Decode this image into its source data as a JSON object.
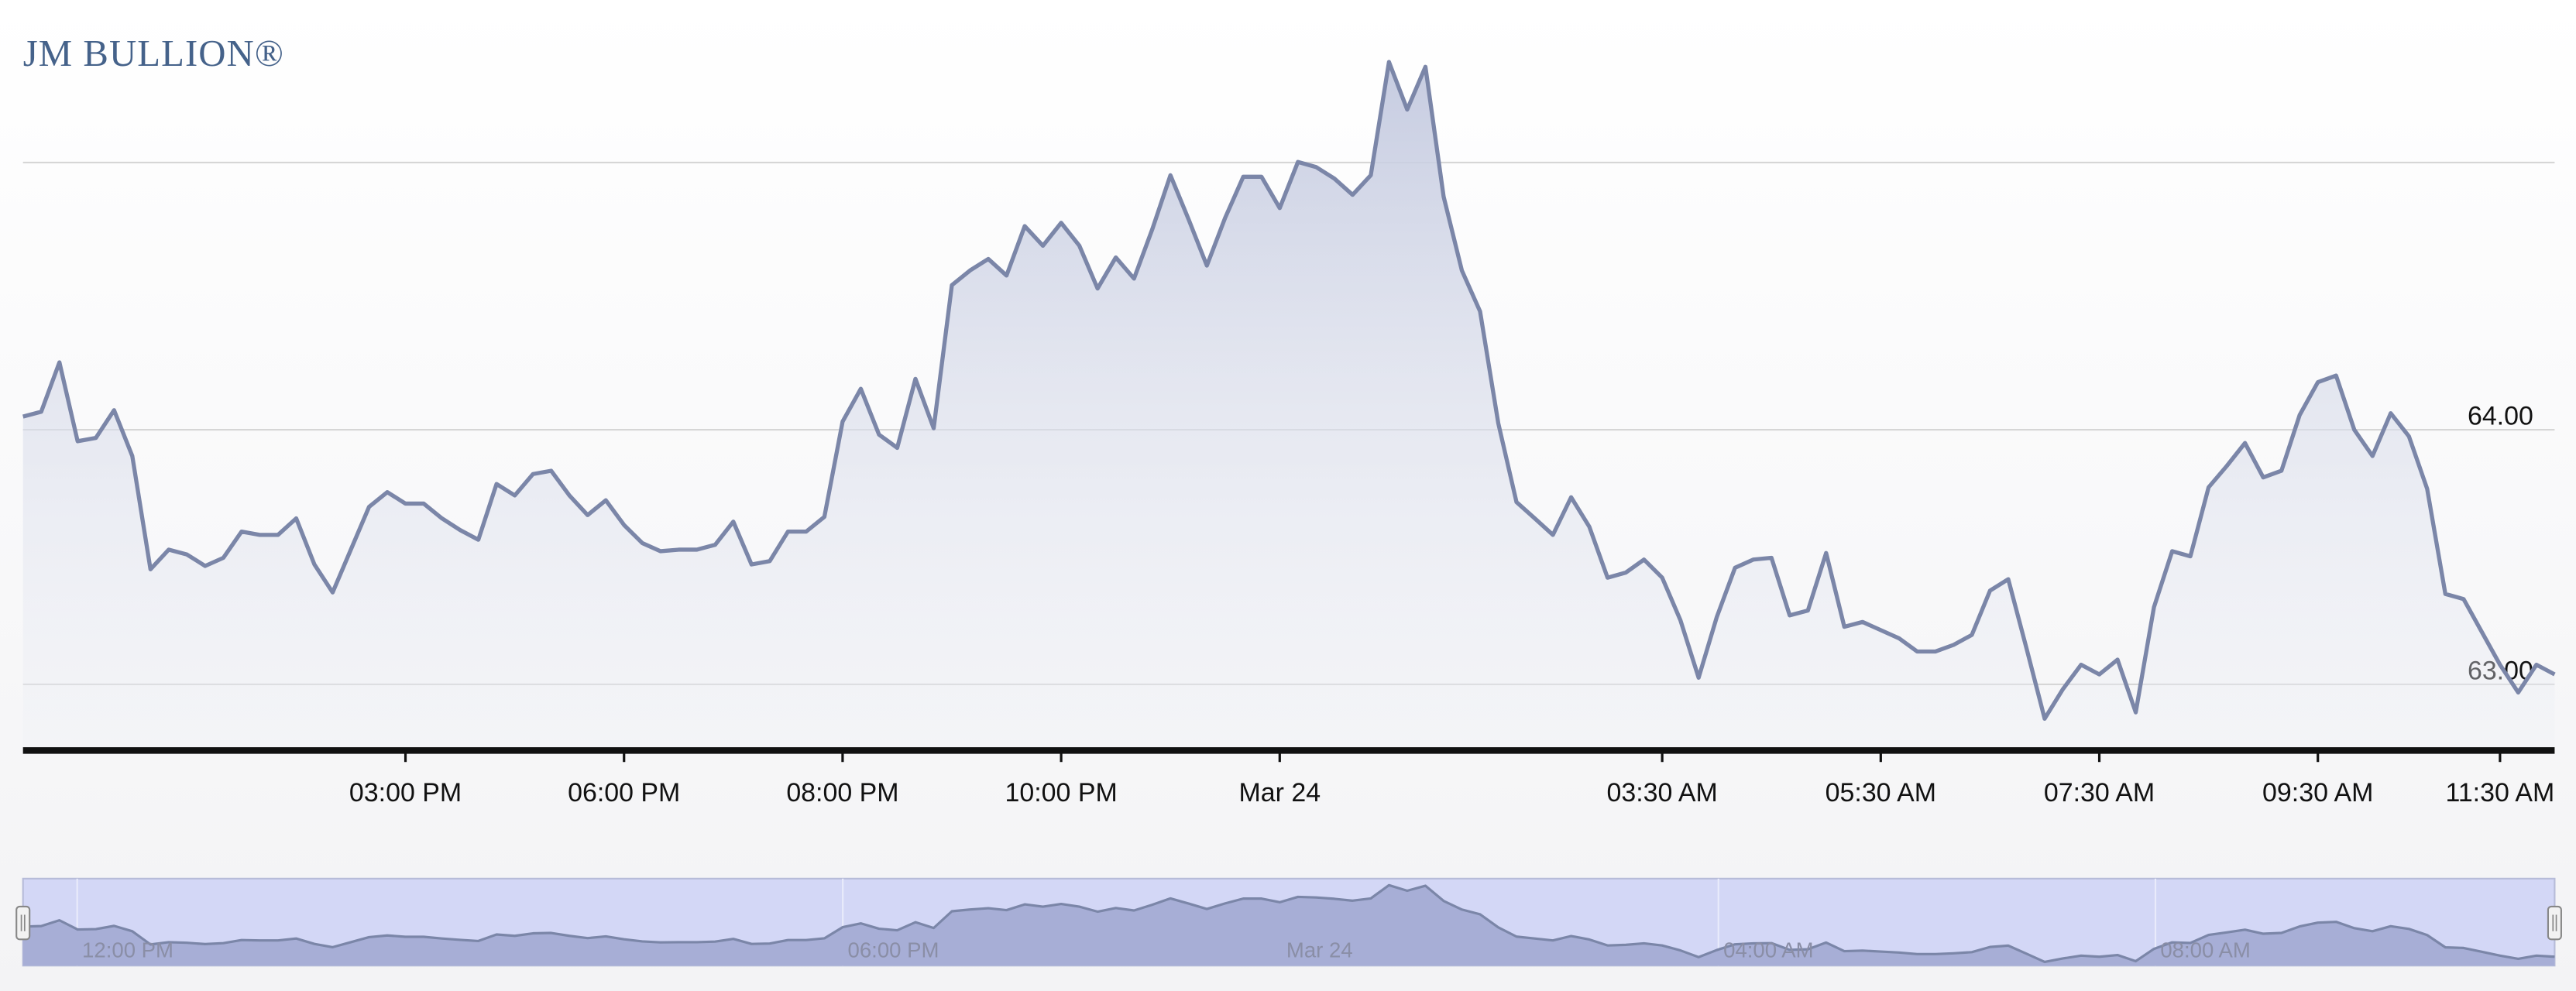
{
  "logo": "JM BULLION®",
  "chart_data": {
    "type": "area",
    "categories": [
      null,
      null,
      null,
      null,
      null,
      null,
      null,
      null,
      null,
      null,
      null,
      null,
      null,
      null,
      null,
      null,
      null,
      null,
      null,
      null,
      null,
      "03:00 PM",
      null,
      null,
      null,
      null,
      null,
      null,
      null,
      null,
      null,
      null,
      null,
      "06:00 PM",
      null,
      null,
      null,
      null,
      null,
      null,
      null,
      null,
      null,
      null,
      null,
      "08:00 PM",
      null,
      null,
      null,
      null,
      null,
      null,
      null,
      null,
      null,
      null,
      null,
      "10:00 PM",
      null,
      null,
      null,
      null,
      null,
      null,
      null,
      null,
      null,
      null,
      null,
      "Mar 24",
      null,
      null,
      null,
      null,
      null,
      null,
      null,
      null,
      null,
      null,
      null,
      null,
      null,
      null,
      null,
      null,
      null,
      null,
      null,
      null,
      "03:30 AM",
      null,
      null,
      null,
      null,
      null,
      null,
      null,
      null,
      null,
      null,
      null,
      "05:30 AM",
      null,
      null,
      null,
      null,
      null,
      null,
      null,
      null,
      null,
      null,
      null,
      "07:30 AM",
      null,
      null,
      null,
      null,
      null,
      null,
      null,
      null,
      null,
      null,
      null,
      "09:30 AM",
      null,
      null,
      null,
      null,
      null,
      null,
      null,
      null,
      null,
      "11:30 AM",
      null,
      null,
      null
    ],
    "values": [
      64.052,
      64.071,
      64.265,
      63.955,
      63.968,
      64.077,
      63.897,
      63.452,
      63.529,
      63.51,
      63.465,
      63.497,
      63.6,
      63.587,
      63.587,
      63.652,
      63.471,
      63.361,
      63.529,
      63.697,
      63.755,
      63.71,
      63.71,
      63.652,
      63.606,
      63.568,
      63.787,
      63.742,
      63.826,
      63.839,
      63.742,
      63.665,
      63.723,
      63.626,
      63.555,
      63.523,
      63.529,
      63.529,
      63.548,
      63.639,
      63.471,
      63.484,
      63.6,
      63.6,
      63.658,
      64.032,
      64.161,
      63.981,
      63.929,
      64.2,
      64.006,
      64.568,
      64.626,
      64.671,
      64.606,
      64.8,
      64.723,
      64.813,
      64.723,
      64.555,
      64.677,
      64.594,
      64.787,
      65.0,
      64.826,
      64.645,
      64.832,
      64.994,
      64.994,
      64.871,
      65.052,
      65.032,
      64.987,
      64.923,
      65.0,
      65.445,
      65.258,
      65.426,
      64.916,
      64.626,
      64.465,
      64.026,
      63.716,
      63.652,
      63.587,
      63.735,
      63.619,
      63.419,
      63.439,
      63.49,
      63.419,
      63.252,
      63.026,
      63.265,
      63.458,
      63.49,
      63.497,
      63.271,
      63.29,
      63.516,
      63.226,
      63.245,
      63.213,
      63.181,
      63.129,
      63.129,
      63.155,
      63.194,
      63.368,
      63.413,
      63.142,
      62.865,
      62.981,
      63.077,
      63.039,
      63.097,
      62.89,
      63.303,
      63.523,
      63.503,
      63.774,
      63.858,
      63.948,
      63.813,
      63.839,
      64.058,
      64.187,
      64.213,
      64.0,
      63.897,
      64.065,
      63.974,
      63.768,
      63.355,
      63.335,
      63.206,
      63.077,
      62.968,
      63.077,
      63.039
    ],
    "color": "#7b86a8",
    "ylim": [
      62.74,
      65.5
    ],
    "yticks": [
      {
        "value": 63,
        "label": "63.00"
      },
      {
        "value": 64,
        "label": "64.00"
      }
    ],
    "grid": true,
    "navigator": {
      "labels": [
        "12:00 PM",
        "06:00 PM",
        "Mar 24",
        "04:00 AM",
        "08:00 AM"
      ]
    }
  }
}
